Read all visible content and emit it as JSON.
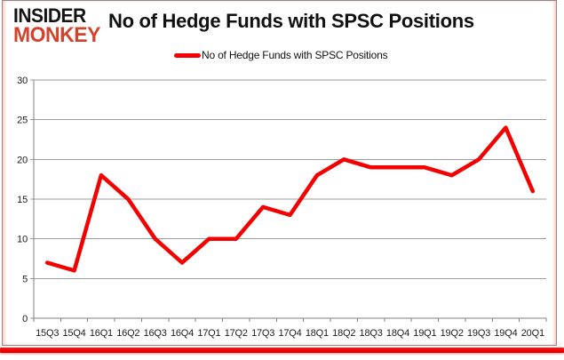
{
  "logo": {
    "line1": "INSIDER",
    "line2": "MONKEY"
  },
  "title": "No of Hedge Funds with SPSC Positions",
  "legend": {
    "label": "No of Hedge Funds with SPSC Positions"
  },
  "colors": {
    "series": "#f40000",
    "logo_accent": "#d6412b",
    "grid": "#9b9b9b",
    "axis": "#808080",
    "text": "#1a1a1a",
    "frame_border": "#8c8c8c",
    "bottom_bar": "#ee0000"
  },
  "chart_data": {
    "type": "line",
    "title": "No of Hedge Funds with SPSC Positions",
    "categories": [
      "15Q3",
      "15Q4",
      "16Q1",
      "16Q2",
      "16Q3",
      "16Q4",
      "17Q1",
      "17Q2",
      "17Q3",
      "17Q4",
      "18Q1",
      "18Q2",
      "18Q3",
      "18Q4",
      "19Q1",
      "19Q2",
      "19Q3",
      "19Q4",
      "20Q1"
    ],
    "series": [
      {
        "name": "No of Hedge Funds with SPSC Positions",
        "color": "#f40000",
        "values": [
          7,
          6,
          18,
          15,
          10,
          7,
          10,
          10,
          14,
          13,
          18,
          20,
          19,
          19,
          19,
          18,
          20,
          24,
          16
        ]
      }
    ],
    "ylim": [
      0,
      30
    ],
    "yticks": [
      0,
      5,
      10,
      15,
      20,
      25,
      30
    ],
    "grid": "horizontal",
    "legend_position": "top-center"
  }
}
